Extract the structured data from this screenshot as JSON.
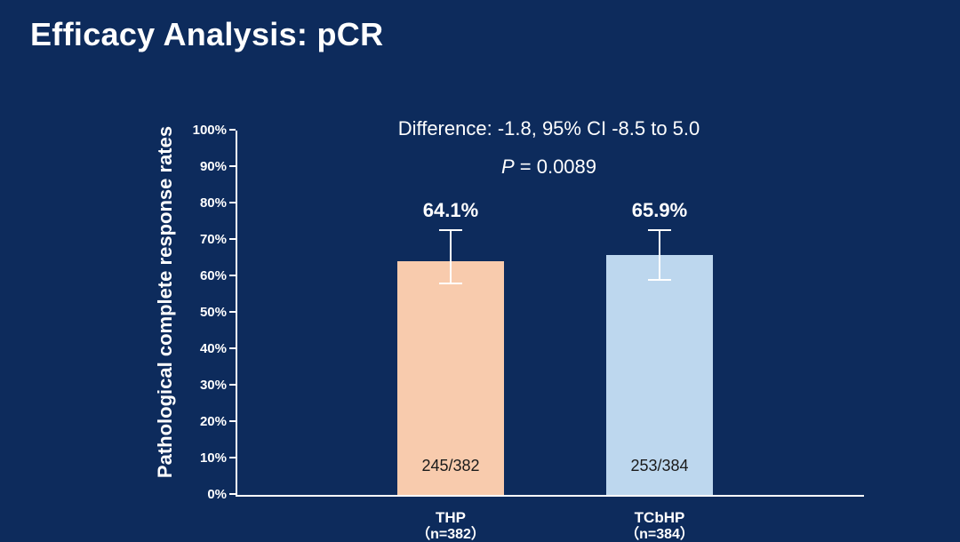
{
  "slide": {
    "title": "Efficacy Analysis: pCR",
    "background_color": "#0d2b5c"
  },
  "chart_data": {
    "type": "bar",
    "title": "Efficacy Analysis: pCR",
    "xlabel": "",
    "ylabel": "Pathological complete response rates",
    "ylim": [
      0,
      100
    ],
    "ytick_step": 10,
    "ytick_labels": [
      "0%",
      "10%",
      "20%",
      "30%",
      "40%",
      "50%",
      "60%",
      "70%",
      "80%",
      "90%",
      "100%"
    ],
    "grid": false,
    "legend": false,
    "categories": [
      "THP",
      "TCbHP"
    ],
    "category_sublabels": [
      "（n=382）",
      "（n=384）"
    ],
    "values": [
      64.1,
      65.9
    ],
    "value_labels": [
      "64.1%",
      "65.9%"
    ],
    "fractions": [
      "245/382",
      "253/384"
    ],
    "error_bars": {
      "upper": [
        72.9,
        73.0
      ],
      "lower": [
        57.8,
        58.8
      ]
    },
    "bar_colors": [
      "#f8cbad",
      "#bdd7ee"
    ],
    "annotations": {
      "difference": "Difference: -1.8, 95% CI -8.5 to 5.0",
      "p_label": "P",
      "p_value": " = 0.0089"
    }
  }
}
